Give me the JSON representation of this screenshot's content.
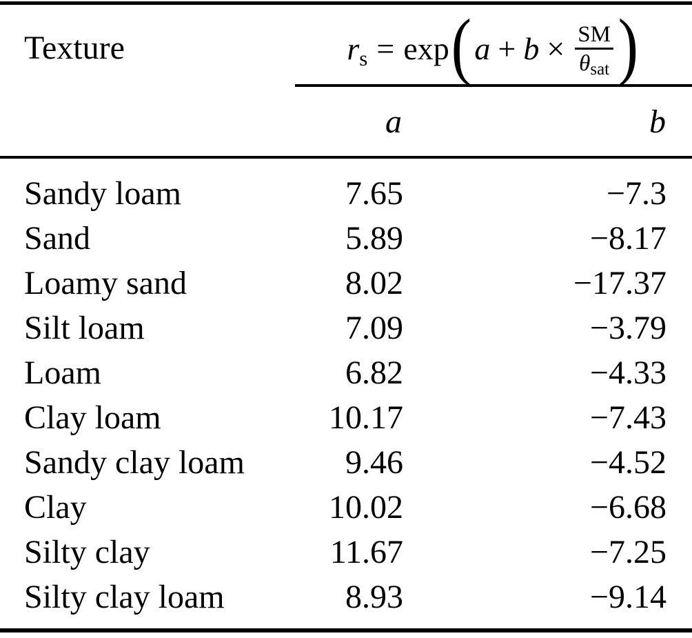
{
  "table": {
    "header": {
      "texture_label": "Texture",
      "formula": {
        "r": "r",
        "r_sub": "s",
        "equals": "=",
        "exp": "exp",
        "open_paren": "(",
        "a": "a",
        "plus": "+",
        "b": "b",
        "times": "×",
        "frac_num": "SM",
        "theta": "θ",
        "theta_sub": "sat",
        "close_paren": ")"
      },
      "col_a": "a",
      "col_b": "b"
    },
    "rows": [
      {
        "texture": "Sandy loam",
        "a": "7.65",
        "b": "−7.3"
      },
      {
        "texture": "Sand",
        "a": "5.89",
        "b": "−8.17"
      },
      {
        "texture": "Loamy sand",
        "a": "8.02",
        "b": "−17.37"
      },
      {
        "texture": "Silt loam",
        "a": "7.09",
        "b": "−3.79"
      },
      {
        "texture": "Loam",
        "a": "6.82",
        "b": "−4.33"
      },
      {
        "texture": "Clay loam",
        "a": "10.17",
        "b": "−7.43"
      },
      {
        "texture": "Sandy clay loam",
        "a": "9.46",
        "b": "−4.52"
      },
      {
        "texture": "Clay",
        "a": "10.02",
        "b": "−6.68"
      },
      {
        "texture": "Silty clay",
        "a": "11.67",
        "b": "−7.25"
      },
      {
        "texture": "Silty clay loam",
        "a": "8.93",
        "b": "−9.14"
      }
    ]
  },
  "chart_data": {
    "type": "table",
    "title": "Soil resistance parameters by texture: rs = exp(a + b × SM/θsat)",
    "columns": [
      "Texture",
      "a",
      "b"
    ],
    "rows": [
      [
        "Sandy loam",
        7.65,
        -7.3
      ],
      [
        "Sand",
        5.89,
        -8.17
      ],
      [
        "Loamy sand",
        8.02,
        -17.37
      ],
      [
        "Silt loam",
        7.09,
        -3.79
      ],
      [
        "Loam",
        6.82,
        -4.33
      ],
      [
        "Clay loam",
        10.17,
        -7.43
      ],
      [
        "Sandy clay loam",
        9.46,
        -4.52
      ],
      [
        "Clay",
        10.02,
        -6.68
      ],
      [
        "Silty clay",
        11.67,
        -7.25
      ],
      [
        "Silty clay loam",
        8.93,
        -9.14
      ]
    ]
  },
  "colors": {
    "background": "#ffffff",
    "text": "#000000",
    "rule": "#000000"
  }
}
